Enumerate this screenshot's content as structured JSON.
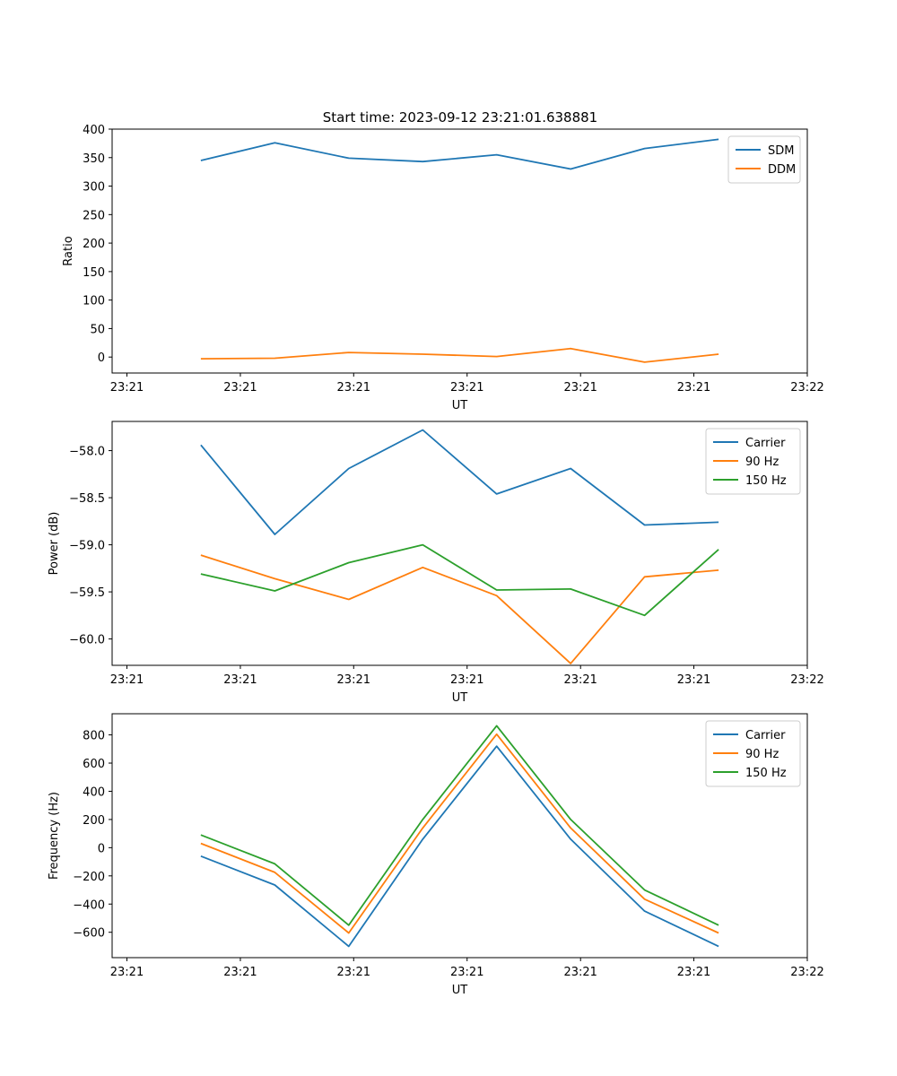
{
  "figure": {
    "title": "Start time: 2023-09-12 23:21:01.638881"
  },
  "colors": {
    "blue": "#1f77b4",
    "orange": "#ff7f0e",
    "green": "#2ca02c"
  },
  "chart_data": [
    {
      "type": "line",
      "title": "Start time: 2023-09-12 23:21:01.638881",
      "xlabel": "UT",
      "ylabel": "Ratio",
      "x": [
        0.5,
        1,
        1.5,
        2,
        2.5,
        3,
        3.5,
        4
      ],
      "xlim": [
        -0.1,
        4.6
      ],
      "xticks": [
        0,
        0.767,
        1.533,
        2.3,
        3.067,
        3.833,
        4.6
      ],
      "xtick_labels": [
        "23:21",
        "23:21",
        "23:21",
        "23:21",
        "23:21",
        "23:21",
        "23:22"
      ],
      "ylim": [
        -28,
        400
      ],
      "yticks": [
        0,
        50,
        100,
        150,
        200,
        250,
        300,
        350,
        400
      ],
      "legend": "top-right",
      "series": [
        {
          "name": "SDM",
          "color": "#1f77b4",
          "values": [
            345,
            376,
            349,
            343,
            355,
            330,
            366,
            382
          ]
        },
        {
          "name": "DDM",
          "color": "#ff7f0e",
          "values": [
            -3,
            -2,
            8,
            5,
            1,
            15,
            -9,
            5
          ]
        }
      ]
    },
    {
      "type": "line",
      "title": "",
      "xlabel": "UT",
      "ylabel": "Power (dB)",
      "x": [
        0.5,
        1,
        1.5,
        2,
        2.5,
        3,
        3.5,
        4
      ],
      "xlim": [
        -0.1,
        4.6
      ],
      "xticks": [
        0,
        0.767,
        1.533,
        2.3,
        3.067,
        3.833,
        4.6
      ],
      "xtick_labels": [
        "23:21",
        "23:21",
        "23:21",
        "23:21",
        "23:21",
        "23:21",
        "23:22"
      ],
      "ylim": [
        -60.28,
        -57.69
      ],
      "yticks": [
        -58.0,
        -58.5,
        -59.0,
        -59.5,
        -60.0
      ],
      "ytick_labels": [
        "−58.0",
        "−58.5",
        "−59.0",
        "−59.5",
        "−60.0"
      ],
      "legend": "top-right",
      "series": [
        {
          "name": "Carrier",
          "color": "#1f77b4",
          "values": [
            -57.94,
            -58.89,
            -58.19,
            -57.78,
            -58.46,
            -58.19,
            -58.79,
            -58.76
          ]
        },
        {
          "name": "90 Hz",
          "color": "#ff7f0e",
          "values": [
            -59.11,
            -59.36,
            -59.58,
            -59.24,
            -59.54,
            -60.26,
            -59.34,
            -59.27
          ]
        },
        {
          "name": "150 Hz",
          "color": "#2ca02c",
          "values": [
            -59.31,
            -59.49,
            -59.19,
            -59.0,
            -59.48,
            -59.47,
            -59.75,
            -59.05
          ]
        }
      ]
    },
    {
      "type": "line",
      "title": "",
      "xlabel": "UT",
      "ylabel": "Frequency (Hz)",
      "x": [
        0.5,
        1,
        1.5,
        2,
        2.5,
        3,
        3.5,
        4
      ],
      "xlim": [
        -0.1,
        4.6
      ],
      "xticks": [
        0,
        0.767,
        1.533,
        2.3,
        3.067,
        3.833,
        4.6
      ],
      "xtick_labels": [
        "23:21",
        "23:21",
        "23:21",
        "23:21",
        "23:21",
        "23:21",
        "23:22"
      ],
      "ylim": [
        -780,
        950
      ],
      "yticks": [
        800,
        600,
        400,
        200,
        0,
        -200,
        -400,
        -600
      ],
      "ytick_labels": [
        "800",
        "600",
        "400",
        "200",
        "0",
        "−200",
        "−400",
        "−600"
      ],
      "legend": "top-right",
      "series": [
        {
          "name": "Carrier",
          "color": "#1f77b4",
          "values": [
            -60,
            -265,
            -700,
            60,
            720,
            60,
            -450,
            -700
          ]
        },
        {
          "name": "90 Hz",
          "color": "#ff7f0e",
          "values": [
            30,
            -175,
            -605,
            140,
            805,
            140,
            -365,
            -605
          ]
        },
        {
          "name": "150 Hz",
          "color": "#2ca02c",
          "values": [
            90,
            -115,
            -550,
            200,
            865,
            200,
            -300,
            -550
          ]
        }
      ]
    }
  ]
}
